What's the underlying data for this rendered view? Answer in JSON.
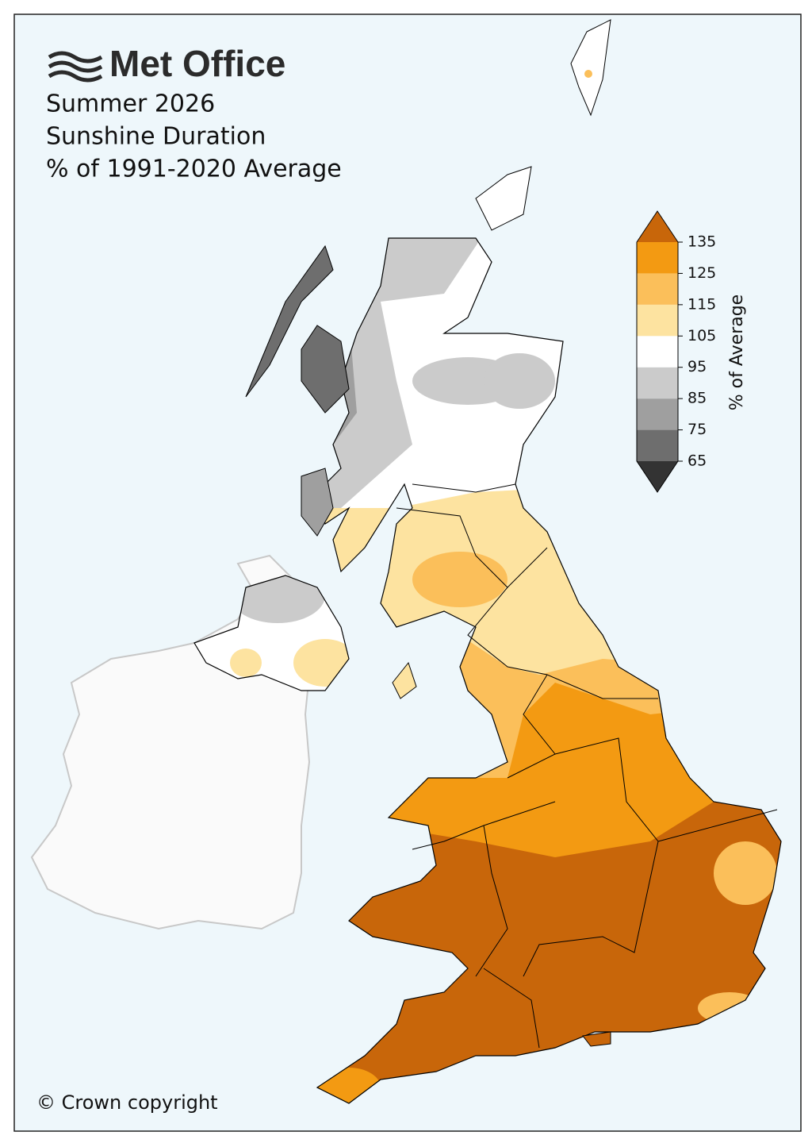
{
  "logo": "Met Office",
  "title": [
    "Summer 2026",
    "Sunshine Duration",
    "% of 1991-2020 Average"
  ],
  "colorbar": {
    "label": "% of Average",
    "ticks": [
      65,
      75,
      85,
      95,
      105,
      115,
      125,
      135
    ],
    "colors": [
      "#333333",
      "#6e6e6e",
      "#9f9f9f",
      "#cbcbcb",
      "#ffffff",
      "#fde3a0",
      "#fbbf5a",
      "#f39a12",
      "#c8660a"
    ]
  },
  "copyright": "© Crown copyright"
}
